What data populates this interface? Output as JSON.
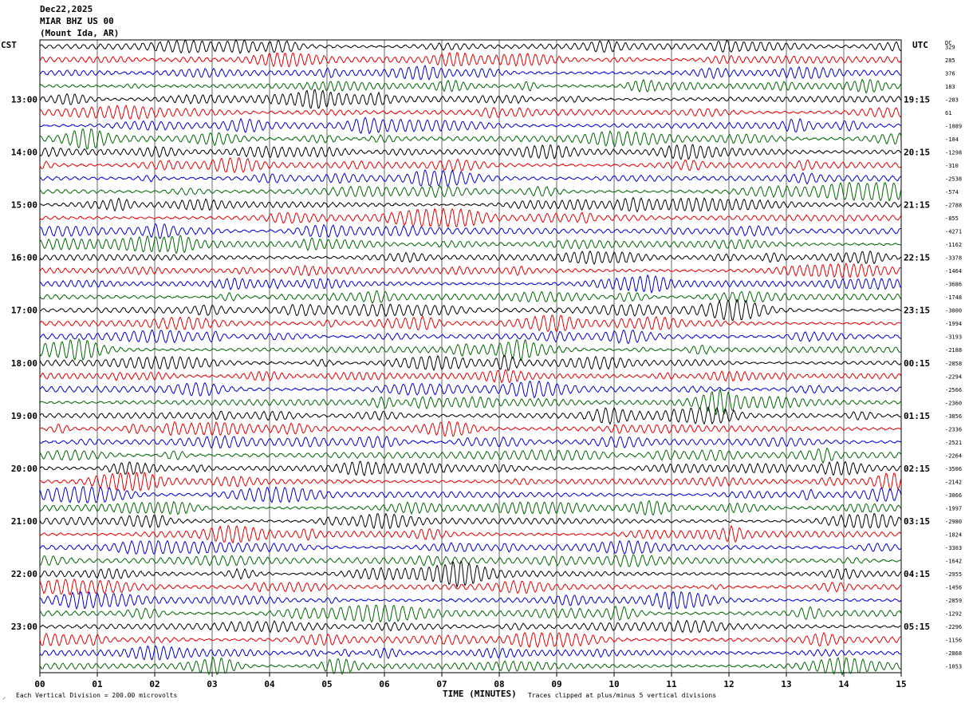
{
  "header": {
    "date": "Dec22,2025",
    "station": "MIAR BHZ US 00",
    "location": "(Mount Ida, AR)"
  },
  "left_tz": "CST",
  "right_tz": "UTC",
  "dc_label": "DC",
  "footer": {
    "scale_note": "Each Vertical Division =  200.00 microvolts",
    "clip_note": "Traces clipped at plus/minus 5 vertical divisions"
  },
  "colors": {
    "trace_cycle": [
      "#000000",
      "#e00000",
      "#0000cc",
      "#006600"
    ],
    "grid": "#000000"
  },
  "chart_data": {
    "type": "line",
    "subtype": "helicorder",
    "xlabel": "TIME (MINUTES)",
    "xlim": [
      0,
      15
    ],
    "x_ticks": [
      "00",
      "01",
      "02",
      "03",
      "04",
      "05",
      "06",
      "07",
      "08",
      "09",
      "10",
      "11",
      "12",
      "13",
      "14",
      "15"
    ],
    "minutes_per_line": 15,
    "left_hour_labels": [
      "13:00",
      "14:00",
      "15:00",
      "16:00",
      "17:00",
      "18:00",
      "19:00",
      "20:00",
      "21:00",
      "22:00",
      "23:00"
    ],
    "right_hour_labels": [
      "19:15",
      "20:15",
      "21:15",
      "22:15",
      "23:15",
      "00:15",
      "01:15",
      "02:15",
      "03:15",
      "04:15",
      "05:15"
    ],
    "grid": true,
    "dc_offsets": [
      "329",
      "285",
      "376",
      "183",
      "-283",
      "61",
      "-1089",
      "-104",
      "-1298",
      "-310",
      "-2538",
      "-574",
      "-2788",
      "-855",
      "-4271",
      "-1162",
      "-3378",
      "-1464",
      "-3686",
      "-1748",
      "-3000",
      "-1994",
      "-3193",
      "-2188",
      "-2858",
      "-2294",
      "-2566",
      "-2360",
      "-3856",
      "-2336",
      "-2521",
      "-2264",
      "-3506",
      "-2142",
      "-3066",
      "-1997",
      "-2980",
      "-1824",
      "-3303",
      "-1642",
      "-2955",
      "-1456",
      "-2859",
      "-1292",
      "-2296",
      "-1156",
      "-2868",
      "-1053"
    ]
  }
}
